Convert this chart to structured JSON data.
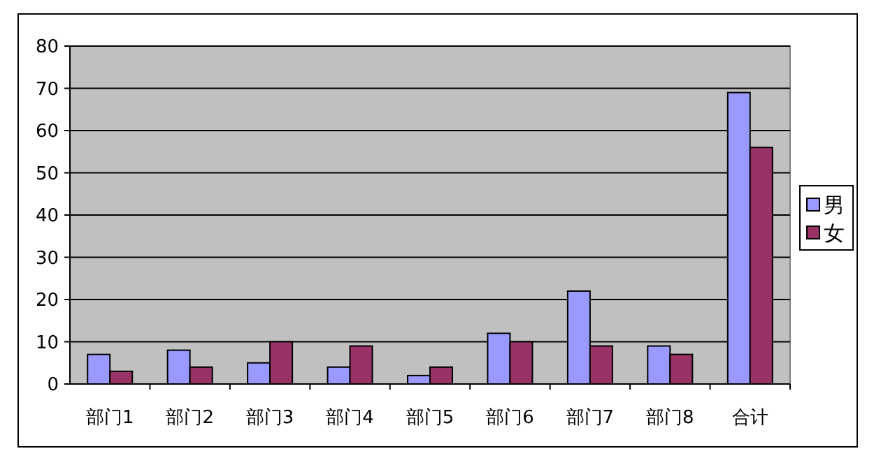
{
  "chart_data": {
    "type": "bar",
    "categories": [
      "部门1",
      "部门2",
      "部门3",
      "部门4",
      "部门5",
      "部门6",
      "部门7",
      "部门8",
      "合计"
    ],
    "series": [
      {
        "name": "男",
        "color": "#9999ff",
        "values": [
          7,
          8,
          5,
          4,
          2,
          12,
          22,
          9,
          69
        ]
      },
      {
        "name": "女",
        "color": "#993366",
        "values": [
          3,
          4,
          10,
          9,
          4,
          10,
          9,
          7,
          56
        ]
      }
    ],
    "ylim": [
      0,
      80
    ],
    "yticks": [
      0,
      10,
      20,
      30,
      40,
      50,
      60,
      70,
      80
    ],
    "grid": "y",
    "legend": "right"
  }
}
